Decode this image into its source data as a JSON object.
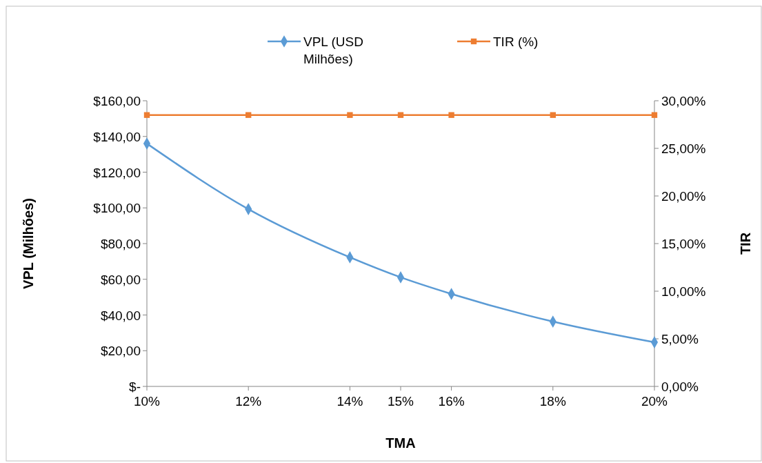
{
  "chart_data": {
    "type": "line",
    "xlabel": "TMA",
    "ylabel": "VPL (Milhões)",
    "y2label": "TIR",
    "x": [
      10,
      12,
      14,
      15,
      16,
      18,
      20
    ],
    "xlim": [
      10,
      20
    ],
    "xticks": [
      {
        "value": 10,
        "label": "10%"
      },
      {
        "value": 12,
        "label": "12%"
      },
      {
        "value": 14,
        "label": "14%"
      },
      {
        "value": 15,
        "label": "15%"
      },
      {
        "value": 16,
        "label": "16%"
      },
      {
        "value": 18,
        "label": "18%"
      },
      {
        "value": 20,
        "label": "20%"
      }
    ],
    "ylim": [
      0,
      160
    ],
    "yticks": [
      {
        "value": 0,
        "label": "$-"
      },
      {
        "value": 20,
        "label": "$20,00"
      },
      {
        "value": 40,
        "label": "$40,00"
      },
      {
        "value": 60,
        "label": "$60,00"
      },
      {
        "value": 80,
        "label": "$80,00"
      },
      {
        "value": 100,
        "label": "$100,00"
      },
      {
        "value": 120,
        "label": "$120,00"
      },
      {
        "value": 140,
        "label": "$140,00"
      },
      {
        "value": 160,
        "label": "$160,00"
      }
    ],
    "y2lim": [
      0,
      30
    ],
    "y2ticks": [
      {
        "value": 0,
        "label": "0,00%"
      },
      {
        "value": 5,
        "label": "5,00%"
      },
      {
        "value": 10,
        "label": "10,00%"
      },
      {
        "value": 15,
        "label": "15,00%"
      },
      {
        "value": 20,
        "label": "20,00%"
      },
      {
        "value": 25,
        "label": "25,00%"
      },
      {
        "value": 30,
        "label": "30,00%"
      }
    ],
    "series": [
      {
        "name": "VPL (USD Milhões)",
        "color": "#5b9bd5",
        "marker": "diamond",
        "values": [
          136,
          99.3,
          72.3,
          61.1,
          51.8,
          36.3,
          24.7
        ]
      },
      {
        "name": "TIR (%)",
        "color": "#ed7d31",
        "marker": "square",
        "axis": "y2",
        "values": [
          28.5,
          28.5,
          28.5,
          28.5,
          28.5,
          28.5,
          28.5
        ]
      }
    ],
    "grid": false,
    "legend": "top"
  }
}
